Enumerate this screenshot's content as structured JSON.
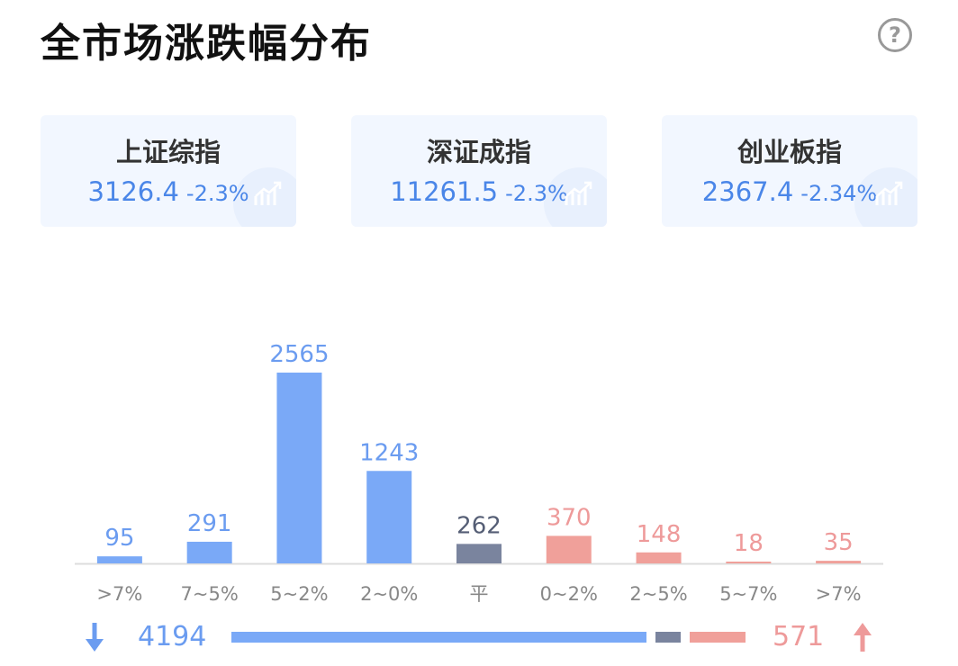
{
  "title": "全市场涨跌幅分布",
  "help_label": "?",
  "indices": [
    {
      "name": "上证综指",
      "value": "3126.4",
      "change": "-2.3%"
    },
    {
      "name": "深证成指",
      "value": "11261.5",
      "change": "-2.3%"
    },
    {
      "name": "创业板指",
      "value": "2367.4",
      "change": "-2.34%"
    }
  ],
  "colors": {
    "down": "#7aa9f7",
    "flat": "#7a849e",
    "up": "#f0a09a",
    "down_text": "#6b9cf0",
    "up_text": "#ee9a9a"
  },
  "chart_data": {
    "type": "bar",
    "categories": [
      ">7%",
      "7~5%",
      "5~2%",
      "2~0%",
      "平",
      "0~2%",
      "2~5%",
      "5~7%",
      ">7%"
    ],
    "values": [
      95,
      291,
      2565,
      1243,
      262,
      370,
      148,
      18,
      35
    ],
    "groups": [
      "down",
      "down",
      "down",
      "down",
      "flat",
      "up",
      "up",
      "up",
      "up"
    ],
    "ylim": [
      0,
      2565
    ]
  },
  "summary": {
    "down_total": "4194",
    "up_total": "571"
  }
}
